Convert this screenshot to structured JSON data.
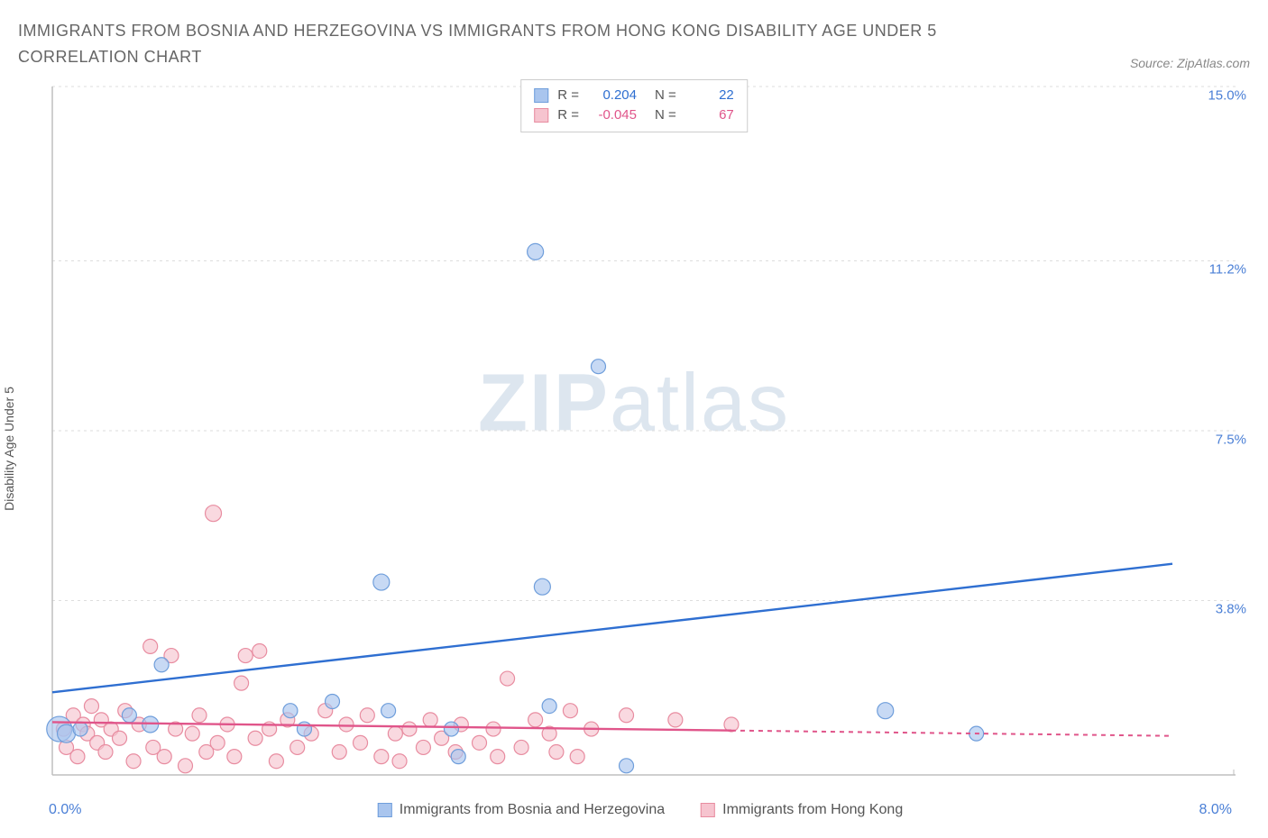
{
  "title": "IMMIGRANTS FROM BOSNIA AND HERZEGOVINA VS IMMIGRANTS FROM HONG KONG DISABILITY AGE UNDER 5 CORRELATION CHART",
  "source": "Source: ZipAtlas.com",
  "y_axis_label": "Disability Age Under 5",
  "watermark_a": "ZIP",
  "watermark_b": "atlas",
  "chart": {
    "type": "scatter",
    "x_min": 0.0,
    "x_max": 8.0,
    "y_min": 0.0,
    "y_max": 15.0,
    "y_ticks": [
      15.0,
      11.2,
      7.5,
      3.8
    ],
    "y_tick_labels": [
      "15.0%",
      "11.2%",
      "7.5%",
      "3.8%"
    ],
    "x_tick_left": "0.0%",
    "x_tick_right": "8.0%",
    "axis_color": "#bfbfbf",
    "grid_color": "#dddddd",
    "y_tick_text_color": "#4a7fd6",
    "x_tick_text_color": "#4a7fd6",
    "background_color": "#ffffff",
    "series": [
      {
        "name": "Immigrants from Bosnia and Herzegovina",
        "color_fill": "#a9c5ee",
        "color_stroke": "#6f9edb",
        "color_line": "#2f6fd1",
        "marker_radius": 8,
        "r_label": "R =",
        "r_value": "0.204",
        "n_label": "N =",
        "n_value": "22",
        "trend": {
          "x1": 0.0,
          "y1": 1.8,
          "x2": 8.0,
          "y2": 4.6,
          "dash_after_x": 8.0
        },
        "points": [
          {
            "x": 0.05,
            "y": 1.0,
            "r": 14
          },
          {
            "x": 0.1,
            "y": 0.9,
            "r": 10
          },
          {
            "x": 0.2,
            "y": 1.0,
            "r": 8
          },
          {
            "x": 0.55,
            "y": 1.3,
            "r": 8
          },
          {
            "x": 0.7,
            "y": 1.1,
            "r": 9
          },
          {
            "x": 0.78,
            "y": 2.4,
            "r": 8
          },
          {
            "x": 1.7,
            "y": 1.4,
            "r": 8
          },
          {
            "x": 1.8,
            "y": 1.0,
            "r": 8
          },
          {
            "x": 2.0,
            "y": 1.6,
            "r": 8
          },
          {
            "x": 2.35,
            "y": 4.2,
            "r": 9
          },
          {
            "x": 2.4,
            "y": 1.4,
            "r": 8
          },
          {
            "x": 2.85,
            "y": 1.0,
            "r": 8
          },
          {
            "x": 2.9,
            "y": 0.4,
            "r": 8
          },
          {
            "x": 3.45,
            "y": 11.4,
            "r": 9
          },
          {
            "x": 3.5,
            "y": 4.1,
            "r": 9
          },
          {
            "x": 3.55,
            "y": 1.5,
            "r": 8
          },
          {
            "x": 3.9,
            "y": 8.9,
            "r": 8
          },
          {
            "x": 4.1,
            "y": 0.2,
            "r": 8
          },
          {
            "x": 5.95,
            "y": 1.4,
            "r": 9
          },
          {
            "x": 6.6,
            "y": 0.9,
            "r": 8
          }
        ]
      },
      {
        "name": "Immigrants from Hong Kong",
        "color_fill": "#f6c4cf",
        "color_stroke": "#e88ca0",
        "color_line": "#e0558a",
        "marker_radius": 8,
        "r_label": "R =",
        "r_value": "-0.045",
        "n_label": "N =",
        "n_value": "67",
        "trend": {
          "x1": 0.0,
          "y1": 1.15,
          "x2": 8.0,
          "y2": 0.85,
          "dash_after_x": 4.85
        },
        "points": [
          {
            "x": 0.08,
            "y": 1.0,
            "r": 8
          },
          {
            "x": 0.1,
            "y": 0.6,
            "r": 8
          },
          {
            "x": 0.15,
            "y": 1.3,
            "r": 8
          },
          {
            "x": 0.18,
            "y": 0.4,
            "r": 8
          },
          {
            "x": 0.22,
            "y": 1.1,
            "r": 8
          },
          {
            "x": 0.25,
            "y": 0.9,
            "r": 8
          },
          {
            "x": 0.28,
            "y": 1.5,
            "r": 8
          },
          {
            "x": 0.32,
            "y": 0.7,
            "r": 8
          },
          {
            "x": 0.35,
            "y": 1.2,
            "r": 8
          },
          {
            "x": 0.38,
            "y": 0.5,
            "r": 8
          },
          {
            "x": 0.42,
            "y": 1.0,
            "r": 8
          },
          {
            "x": 0.48,
            "y": 0.8,
            "r": 8
          },
          {
            "x": 0.52,
            "y": 1.4,
            "r": 8
          },
          {
            "x": 0.58,
            "y": 0.3,
            "r": 8
          },
          {
            "x": 0.62,
            "y": 1.1,
            "r": 8
          },
          {
            "x": 0.7,
            "y": 2.8,
            "r": 8
          },
          {
            "x": 0.72,
            "y": 0.6,
            "r": 8
          },
          {
            "x": 0.8,
            "y": 0.4,
            "r": 8
          },
          {
            "x": 0.85,
            "y": 2.6,
            "r": 8
          },
          {
            "x": 0.88,
            "y": 1.0,
            "r": 8
          },
          {
            "x": 0.95,
            "y": 0.2,
            "r": 8
          },
          {
            "x": 1.0,
            "y": 0.9,
            "r": 8
          },
          {
            "x": 1.05,
            "y": 1.3,
            "r": 8
          },
          {
            "x": 1.1,
            "y": 0.5,
            "r": 8
          },
          {
            "x": 1.15,
            "y": 5.7,
            "r": 9
          },
          {
            "x": 1.18,
            "y": 0.7,
            "r": 8
          },
          {
            "x": 1.25,
            "y": 1.1,
            "r": 8
          },
          {
            "x": 1.3,
            "y": 0.4,
            "r": 8
          },
          {
            "x": 1.35,
            "y": 2.0,
            "r": 8
          },
          {
            "x": 1.38,
            "y": 2.6,
            "r": 8
          },
          {
            "x": 1.45,
            "y": 0.8,
            "r": 8
          },
          {
            "x": 1.48,
            "y": 2.7,
            "r": 8
          },
          {
            "x": 1.55,
            "y": 1.0,
            "r": 8
          },
          {
            "x": 1.6,
            "y": 0.3,
            "r": 8
          },
          {
            "x": 1.68,
            "y": 1.2,
            "r": 8
          },
          {
            "x": 1.75,
            "y": 0.6,
            "r": 8
          },
          {
            "x": 1.85,
            "y": 0.9,
            "r": 8
          },
          {
            "x": 1.95,
            "y": 1.4,
            "r": 8
          },
          {
            "x": 2.05,
            "y": 0.5,
            "r": 8
          },
          {
            "x": 2.1,
            "y": 1.1,
            "r": 8
          },
          {
            "x": 2.2,
            "y": 0.7,
            "r": 8
          },
          {
            "x": 2.25,
            "y": 1.3,
            "r": 8
          },
          {
            "x": 2.35,
            "y": 0.4,
            "r": 8
          },
          {
            "x": 2.45,
            "y": 0.9,
            "r": 8
          },
          {
            "x": 2.48,
            "y": 0.3,
            "r": 8
          },
          {
            "x": 2.55,
            "y": 1.0,
            "r": 8
          },
          {
            "x": 2.65,
            "y": 0.6,
            "r": 8
          },
          {
            "x": 2.7,
            "y": 1.2,
            "r": 8
          },
          {
            "x": 2.78,
            "y": 0.8,
            "r": 8
          },
          {
            "x": 2.88,
            "y": 0.5,
            "r": 8
          },
          {
            "x": 2.92,
            "y": 1.1,
            "r": 8
          },
          {
            "x": 3.05,
            "y": 0.7,
            "r": 8
          },
          {
            "x": 3.15,
            "y": 1.0,
            "r": 8
          },
          {
            "x": 3.18,
            "y": 0.4,
            "r": 8
          },
          {
            "x": 3.25,
            "y": 2.1,
            "r": 8
          },
          {
            "x": 3.35,
            "y": 0.6,
            "r": 8
          },
          {
            "x": 3.45,
            "y": 1.2,
            "r": 8
          },
          {
            "x": 3.55,
            "y": 0.9,
            "r": 8
          },
          {
            "x": 3.6,
            "y": 0.5,
            "r": 8
          },
          {
            "x": 3.7,
            "y": 1.4,
            "r": 8
          },
          {
            "x": 3.85,
            "y": 1.0,
            "r": 8
          },
          {
            "x": 3.75,
            "y": 0.4,
            "r": 8
          },
          {
            "x": 4.1,
            "y": 1.3,
            "r": 8
          },
          {
            "x": 4.45,
            "y": 1.2,
            "r": 8
          },
          {
            "x": 4.85,
            "y": 1.1,
            "r": 8
          }
        ]
      }
    ]
  },
  "bottom_legend": [
    {
      "swatch": 0,
      "label": "Immigrants from Bosnia and Herzegovina"
    },
    {
      "swatch": 1,
      "label": "Immigrants from Hong Kong"
    }
  ]
}
